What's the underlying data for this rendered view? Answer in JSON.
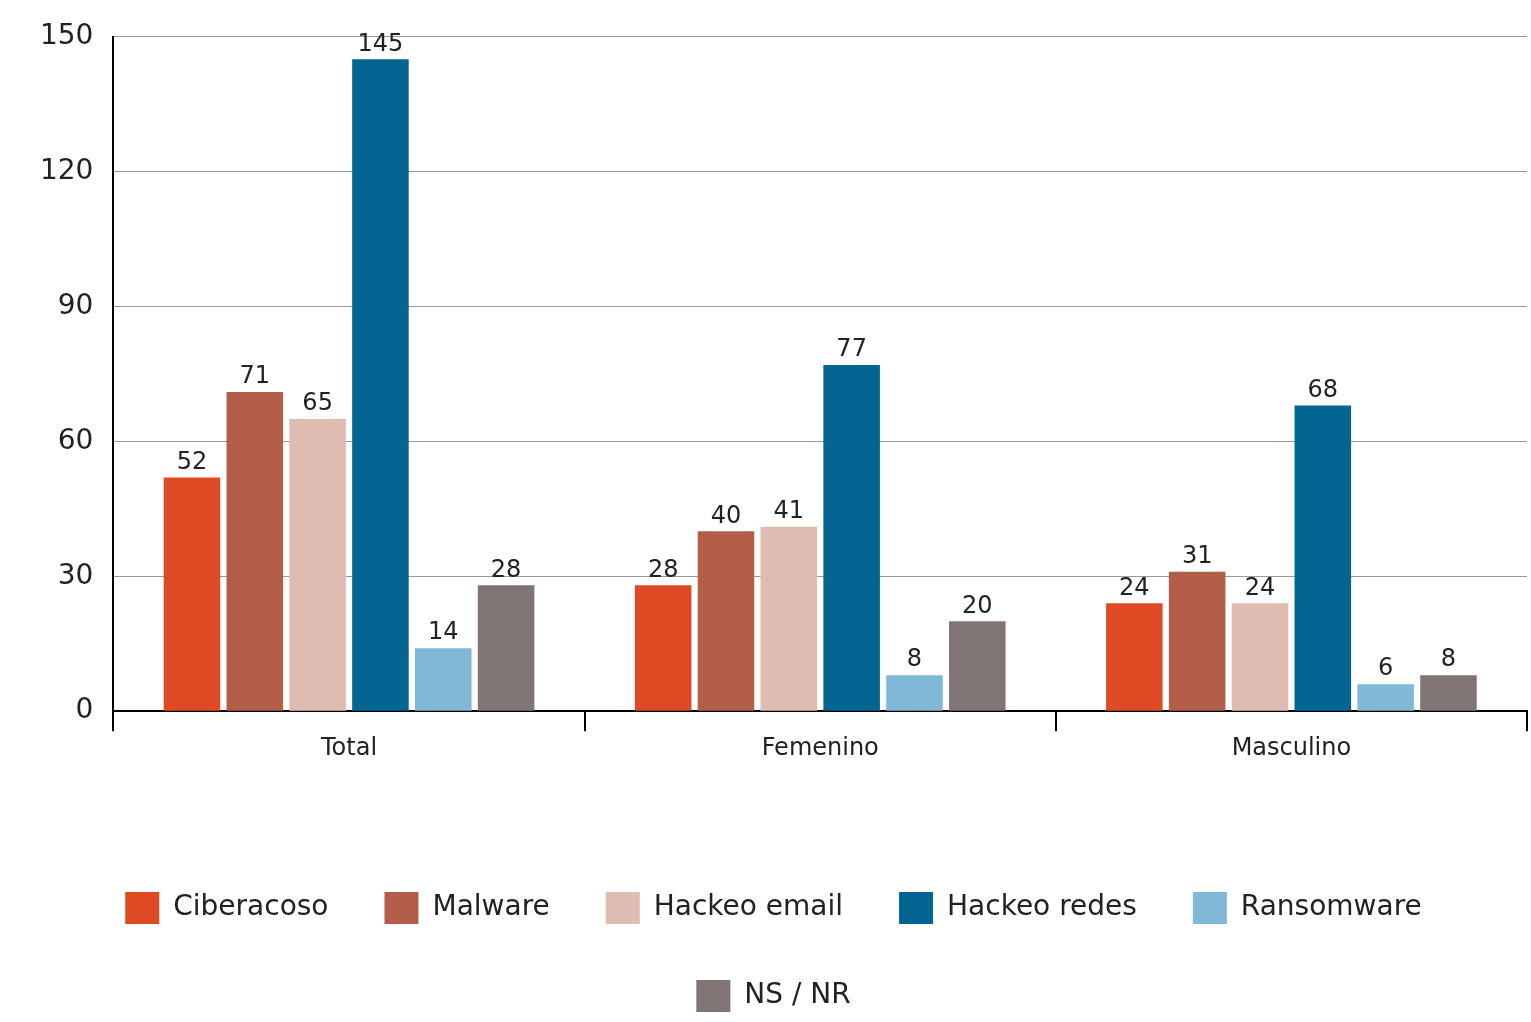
{
  "chart_data": {
    "type": "bar",
    "categories": [
      "Total",
      "Femenino",
      "Masculino"
    ],
    "series": [
      {
        "name": "Ciberacoso",
        "color": "#dd4a24",
        "values": [
          52,
          28,
          24
        ]
      },
      {
        "name": "Malware",
        "color": "#b25e48",
        "values": [
          71,
          40,
          31
        ]
      },
      {
        "name": "Hackeo email",
        "color": "#dfbcb2",
        "values": [
          65,
          41,
          24
        ]
      },
      {
        "name": "Hackeo redes",
        "color": "#046592",
        "values": [
          145,
          77,
          68
        ]
      },
      {
        "name": "Ransomware",
        "color": "#80b9d8",
        "values": [
          14,
          8,
          6
        ]
      },
      {
        "name": "NS / NR",
        "color": "#817475",
        "values": [
          28,
          20,
          8
        ]
      }
    ],
    "ylim": [
      0,
      150
    ],
    "yticks": [
      0,
      30,
      60,
      90,
      120,
      150
    ],
    "grid": "y",
    "legend": "bottom",
    "data_labels": true
  }
}
